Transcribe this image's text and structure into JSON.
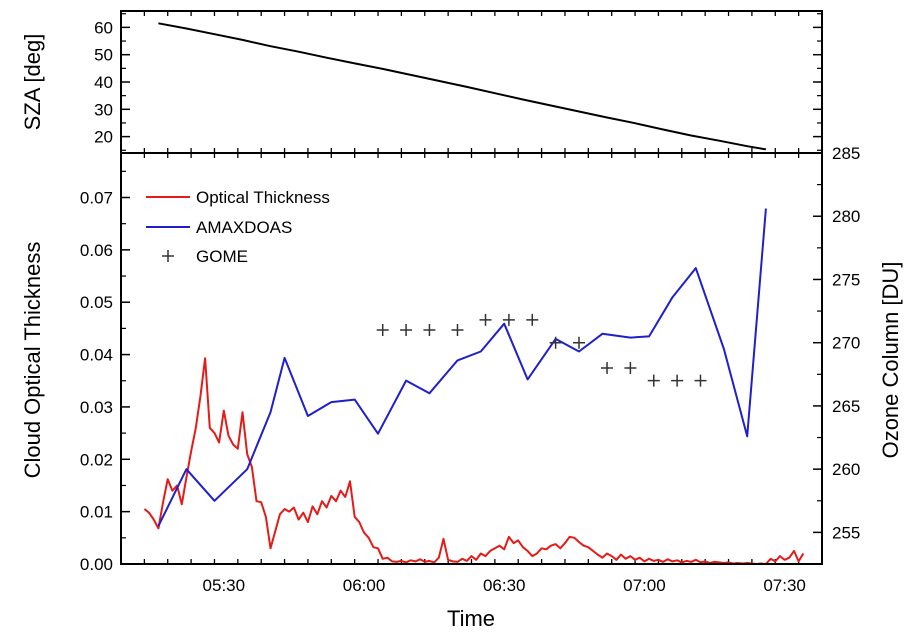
{
  "chart_data": [
    {
      "type": "line",
      "ylabel": "SZA  [deg]",
      "xlim": [
        "05:08",
        "07:38"
      ],
      "ylim": [
        14,
        66
      ],
      "yticks": [
        20,
        30,
        40,
        50,
        60
      ],
      "series": [
        {
          "color": "#000000",
          "points": [
            [
              "05:16",
              61.5
            ],
            [
              "05:22",
              59.6
            ],
            [
              "05:28",
              57.5
            ],
            [
              "05:34",
              55.4
            ],
            [
              "05:40",
              53.1
            ],
            [
              "05:46",
              51.1
            ],
            [
              "05:52",
              48.9
            ],
            [
              "05:58",
              46.8
            ],
            [
              "06:04",
              44.8
            ],
            [
              "06:10",
              42.6
            ],
            [
              "06:16",
              40.4
            ],
            [
              "06:22",
              38.2
            ],
            [
              "06:28",
              35.9
            ],
            [
              "06:34",
              33.6
            ],
            [
              "06:40",
              31.4
            ],
            [
              "06:46",
              29.2
            ],
            [
              "06:52",
              27.0
            ],
            [
              "06:58",
              24.9
            ],
            [
              "07:04",
              22.6
            ],
            [
              "07:10",
              20.4
            ],
            [
              "07:16",
              18.5
            ],
            [
              "07:22",
              16.5
            ],
            [
              "07:26",
              15.3
            ]
          ]
        }
      ]
    },
    {
      "type": "line",
      "xlabel": "Time",
      "ylabel": "Cloud Optical Thickness",
      "y2label": "Ozone Column  [DU]",
      "xlim": [
        "05:08",
        "07:38"
      ],
      "ylim": [
        0,
        0.0785
      ],
      "y2lim": [
        252.5,
        285
      ],
      "xticks": [
        "05:30",
        "06:00",
        "06:30",
        "07:00",
        "07:30"
      ],
      "yticks": [
        "0.00",
        "0.01",
        "0.02",
        "0.03",
        "0.04",
        "0.05",
        "0.06",
        "0.07"
      ],
      "y2ticks": [
        255,
        260,
        265,
        270,
        275,
        280,
        285
      ],
      "legend": {
        "position": "top-left"
      },
      "series": [
        {
          "name": "Optical Thickness",
          "axis": "left",
          "color": "#e41b17",
          "points": [
            [
              "05:13",
              0.0105
            ],
            [
              "05:14",
              0.0098
            ],
            [
              "05:15",
              0.0085
            ],
            [
              "05:16",
              0.0068
            ],
            [
              "05:17",
              0.0118
            ],
            [
              "05:18",
              0.0162
            ],
            [
              "05:19",
              0.014
            ],
            [
              "05:20",
              0.015
            ],
            [
              "05:21",
              0.0114
            ],
            [
              "05:22",
              0.0165
            ],
            [
              "05:23",
              0.0215
            ],
            [
              "05:24",
              0.026
            ],
            [
              "05:25",
              0.032
            ],
            [
              "05:26",
              0.0393
            ],
            [
              "05:27",
              0.026
            ],
            [
              "05:28",
              0.025
            ],
            [
              "05:29",
              0.0232
            ],
            [
              "05:30",
              0.0293
            ],
            [
              "05:31",
              0.0245
            ],
            [
              "05:32",
              0.0228
            ],
            [
              "05:33",
              0.022
            ],
            [
              "05:34",
              0.029
            ],
            [
              "05:35",
              0.021
            ],
            [
              "05:36",
              0.0185
            ],
            [
              "05:37",
              0.012
            ],
            [
              "05:38",
              0.0118
            ],
            [
              "05:39",
              0.009
            ],
            [
              "05:40",
              0.003
            ],
            [
              "05:41",
              0.0062
            ],
            [
              "05:42",
              0.0095
            ],
            [
              "05:43",
              0.0105
            ],
            [
              "05:44",
              0.01
            ],
            [
              "05:45",
              0.0108
            ],
            [
              "05:46",
              0.0085
            ],
            [
              "05:47",
              0.0098
            ],
            [
              "05:48",
              0.008
            ],
            [
              "05:49",
              0.011
            ],
            [
              "05:50",
              0.0095
            ],
            [
              "05:51",
              0.012
            ],
            [
              "05:52",
              0.0108
            ],
            [
              "05:53",
              0.013
            ],
            [
              "05:54",
              0.012
            ],
            [
              "05:55",
              0.014
            ],
            [
              "05:56",
              0.0128
            ],
            [
              "05:57",
              0.0158
            ],
            [
              "05:58",
              0.009
            ],
            [
              "05:59",
              0.008
            ],
            [
              "06:00",
              0.006
            ],
            [
              "06:01",
              0.005
            ],
            [
              "06:02",
              0.0032
            ],
            [
              "06:03",
              0.003
            ],
            [
              "06:04",
              0.001
            ],
            [
              "06:05",
              0.0012
            ],
            [
              "06:06",
              0.0005
            ],
            [
              "06:07",
              0.0004
            ],
            [
              "06:08",
              0.0006
            ],
            [
              "06:09",
              0.0003
            ],
            [
              "06:10",
              0.0007
            ],
            [
              "06:11",
              0.0005
            ],
            [
              "06:12",
              0.0009
            ],
            [
              "06:13",
              0.0004
            ],
            [
              "06:14",
              0.0006
            ],
            [
              "06:15",
              0.0003
            ],
            [
              "06:16",
              0.0012
            ],
            [
              "06:17",
              0.0048
            ],
            [
              "06:18",
              0.0008
            ],
            [
              "06:19",
              0.0005
            ],
            [
              "06:20",
              0.0004
            ],
            [
              "06:21",
              0.001
            ],
            [
              "06:22",
              0.0006
            ],
            [
              "06:23",
              0.0015
            ],
            [
              "06:24",
              0.0008
            ],
            [
              "06:25",
              0.002
            ],
            [
              "06:26",
              0.0015
            ],
            [
              "06:27",
              0.0025
            ],
            [
              "06:28",
              0.003
            ],
            [
              "06:29",
              0.0035
            ],
            [
              "06:30",
              0.0028
            ],
            [
              "06:31",
              0.0052
            ],
            [
              "06:32",
              0.004
            ],
            [
              "06:33",
              0.0045
            ],
            [
              "06:34",
              0.0032
            ],
            [
              "06:35",
              0.0025
            ],
            [
              "06:36",
              0.0015
            ],
            [
              "06:37",
              0.002
            ],
            [
              "06:38",
              0.003
            ],
            [
              "06:39",
              0.0028
            ],
            [
              "06:40",
              0.0035
            ],
            [
              "06:41",
              0.0038
            ],
            [
              "06:42",
              0.003
            ],
            [
              "06:43",
              0.004
            ],
            [
              "06:44",
              0.0052
            ],
            [
              "06:45",
              0.005
            ],
            [
              "06:46",
              0.0042
            ],
            [
              "06:47",
              0.0035
            ],
            [
              "06:48",
              0.0032
            ],
            [
              "06:49",
              0.0025
            ],
            [
              "06:50",
              0.0018
            ],
            [
              "06:51",
              0.0012
            ],
            [
              "06:52",
              0.002
            ],
            [
              "06:53",
              0.0015
            ],
            [
              "06:54",
              0.0008
            ],
            [
              "06:55",
              0.0018
            ],
            [
              "06:56",
              0.001
            ],
            [
              "06:57",
              0.0015
            ],
            [
              "06:58",
              0.0008
            ],
            [
              "06:59",
              0.0012
            ],
            [
              "07:00",
              0.0005
            ],
            [
              "07:01",
              0.001
            ],
            [
              "07:02",
              0.0006
            ],
            [
              "07:03",
              0.0008
            ],
            [
              "07:04",
              0.0004
            ],
            [
              "07:05",
              0.0009
            ],
            [
              "07:06",
              0.0005
            ],
            [
              "07:07",
              0.0007
            ],
            [
              "07:08",
              0.0003
            ],
            [
              "07:09",
              0.0006
            ],
            [
              "07:10",
              0.0004
            ],
            [
              "07:11",
              0.0008
            ],
            [
              "07:12",
              0.0003
            ],
            [
              "07:13",
              0.0005
            ],
            [
              "07:14",
              0.0002
            ],
            [
              "07:15",
              0.0004
            ],
            [
              "07:16",
              0.0003
            ],
            [
              "07:17",
              0.0002
            ],
            [
              "07:18",
              0.0003
            ],
            [
              "07:19",
              0.0001
            ],
            [
              "07:20",
              0.0002
            ],
            [
              "07:21",
              0.0001
            ],
            [
              "07:22",
              0.0002
            ],
            [
              "07:23",
              0.0001
            ],
            [
              "07:24",
              0.0
            ],
            [
              "07:25",
              0.0001
            ],
            [
              "07:26",
              0.0
            ],
            [
              "07:27",
              0.001
            ],
            [
              "07:28",
              0.0005
            ],
            [
              "07:29",
              0.0015
            ],
            [
              "07:30",
              0.0008
            ],
            [
              "07:31",
              0.0012
            ],
            [
              "07:32",
              0.0025
            ],
            [
              "07:33",
              0.0005
            ],
            [
              "07:34",
              0.002
            ]
          ]
        },
        {
          "name": "AMAXDOAS",
          "axis": "right",
          "color": "#1f1fcc",
          "points": [
            [
              "05:16",
              255.5
            ],
            [
              "05:22",
              260.0
            ],
            [
              "05:28",
              257.5
            ],
            [
              "05:35",
              260.0
            ],
            [
              "05:40",
              264.5
            ],
            [
              "05:43",
              268.8
            ],
            [
              "05:48",
              264.2
            ],
            [
              "05:53",
              265.3
            ],
            [
              "05:58",
              265.5
            ],
            [
              "06:03",
              262.8
            ],
            [
              "06:09",
              267.0
            ],
            [
              "06:14",
              266.0
            ],
            [
              "06:20",
              268.6
            ],
            [
              "06:25",
              269.3
            ],
            [
              "06:30",
              271.5
            ],
            [
              "06:35",
              267.1
            ],
            [
              "06:41",
              270.3
            ],
            [
              "06:46",
              269.3
            ],
            [
              "06:51",
              270.7
            ],
            [
              "06:57",
              270.4
            ],
            [
              "07:01",
              270.5
            ],
            [
              "07:06",
              273.6
            ],
            [
              "07:11",
              275.9
            ],
            [
              "07:17",
              269.5
            ],
            [
              "07:22",
              262.6
            ],
            [
              "07:26",
              280.6
            ]
          ]
        },
        {
          "name": "GOME",
          "axis": "right",
          "color": "#333333",
          "marker": "plus",
          "points": [
            [
              "06:04",
              271.0
            ],
            [
              "06:09",
              271.0
            ],
            [
              "06:14",
              271.0
            ],
            [
              "06:20",
              271.0
            ],
            [
              "06:26",
              271.8
            ],
            [
              "06:31",
              271.8
            ],
            [
              "06:36",
              271.8
            ],
            [
              "06:41",
              270.0
            ],
            [
              "06:46",
              270.0
            ],
            [
              "06:52",
              268.0
            ],
            [
              "06:57",
              268.0
            ],
            [
              "07:02",
              267.0
            ],
            [
              "07:07",
              267.0
            ],
            [
              "07:12",
              267.0
            ]
          ]
        }
      ]
    }
  ]
}
